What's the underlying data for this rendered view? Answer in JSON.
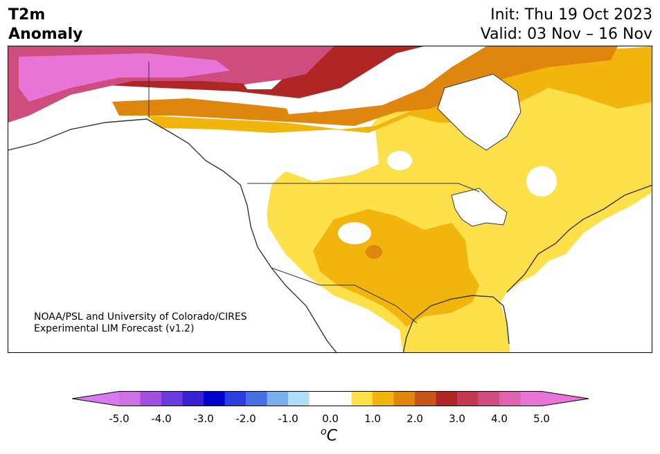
{
  "header": {
    "title_line1": "T2m",
    "title_line2": "Anomaly",
    "init_text": "Init: Thu 19 Oct 2023",
    "valid_text": "Valid: 03 Nov – 16 Nov"
  },
  "credit": {
    "line1": "NOAA/PSL and University of Colorado/CIRES",
    "line2": "Experimental LIM Forecast (v1.2)"
  },
  "colorbar": {
    "tick_labels": [
      "-5.0",
      "-4.0",
      "-3.0",
      "-2.0",
      "-1.0",
      "0.0",
      "1.0",
      "2.0",
      "3.0",
      "4.0",
      "5.0"
    ],
    "unit_base": "C",
    "unit_sup": "o",
    "colors": [
      "#cf6fe6",
      "#a050e0",
      "#6a3adc",
      "#3a22d4",
      "#0000cc",
      "#2a3ee0",
      "#4a70e6",
      "#78b0f0",
      "#b0dcf8",
      "#ffffff",
      "#ffffff",
      "#fde04a",
      "#f2b50e",
      "#de860e",
      "#c9541a",
      "#b02624",
      "#c23a52",
      "#cf4d7e",
      "#de62b2",
      "#e874d8"
    ],
    "min_color": "#d77cf0",
    "max_color": "#e874d8"
  },
  "map": {
    "region": "North America",
    "variable": "2 m temperature anomaly",
    "fill_colors": {
      "very_warm": "#e874d8",
      "warm5": "#de62b2",
      "warm4": "#cf4d7e",
      "warm3": "#c23a52",
      "warm2": "#b02624",
      "warm1": "#c9541a",
      "orange": "#de860e",
      "gold": "#f2b50e",
      "yellow": "#fde04a",
      "neutral": "#ffffff"
    }
  }
}
